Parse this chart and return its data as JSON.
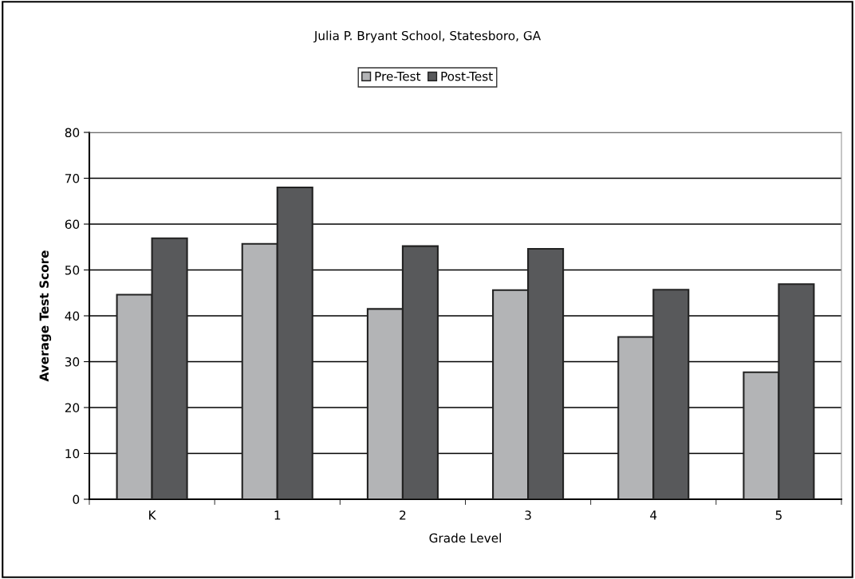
{
  "chart_data": {
    "type": "bar",
    "title": "Julia P. Bryant School, Statesboro, GA",
    "xlabel": "Grade Level",
    "ylabel": "Average Test Score",
    "categories": [
      "K",
      "1",
      "2",
      "3",
      "4",
      "5"
    ],
    "series": [
      {
        "name": "Pre-Test",
        "color": "#b3b4b6",
        "values": [
          44.6,
          55.7,
          41.5,
          45.6,
          35.4,
          27.7
        ]
      },
      {
        "name": "Post-Test",
        "color": "#58595b",
        "values": [
          56.9,
          68.0,
          55.2,
          54.6,
          45.7,
          46.9
        ]
      }
    ],
    "ylim": [
      0,
      80
    ],
    "yticks": [
      0,
      10,
      20,
      30,
      40,
      50,
      60,
      70,
      80
    ],
    "grid": "y",
    "legend": "top"
  }
}
